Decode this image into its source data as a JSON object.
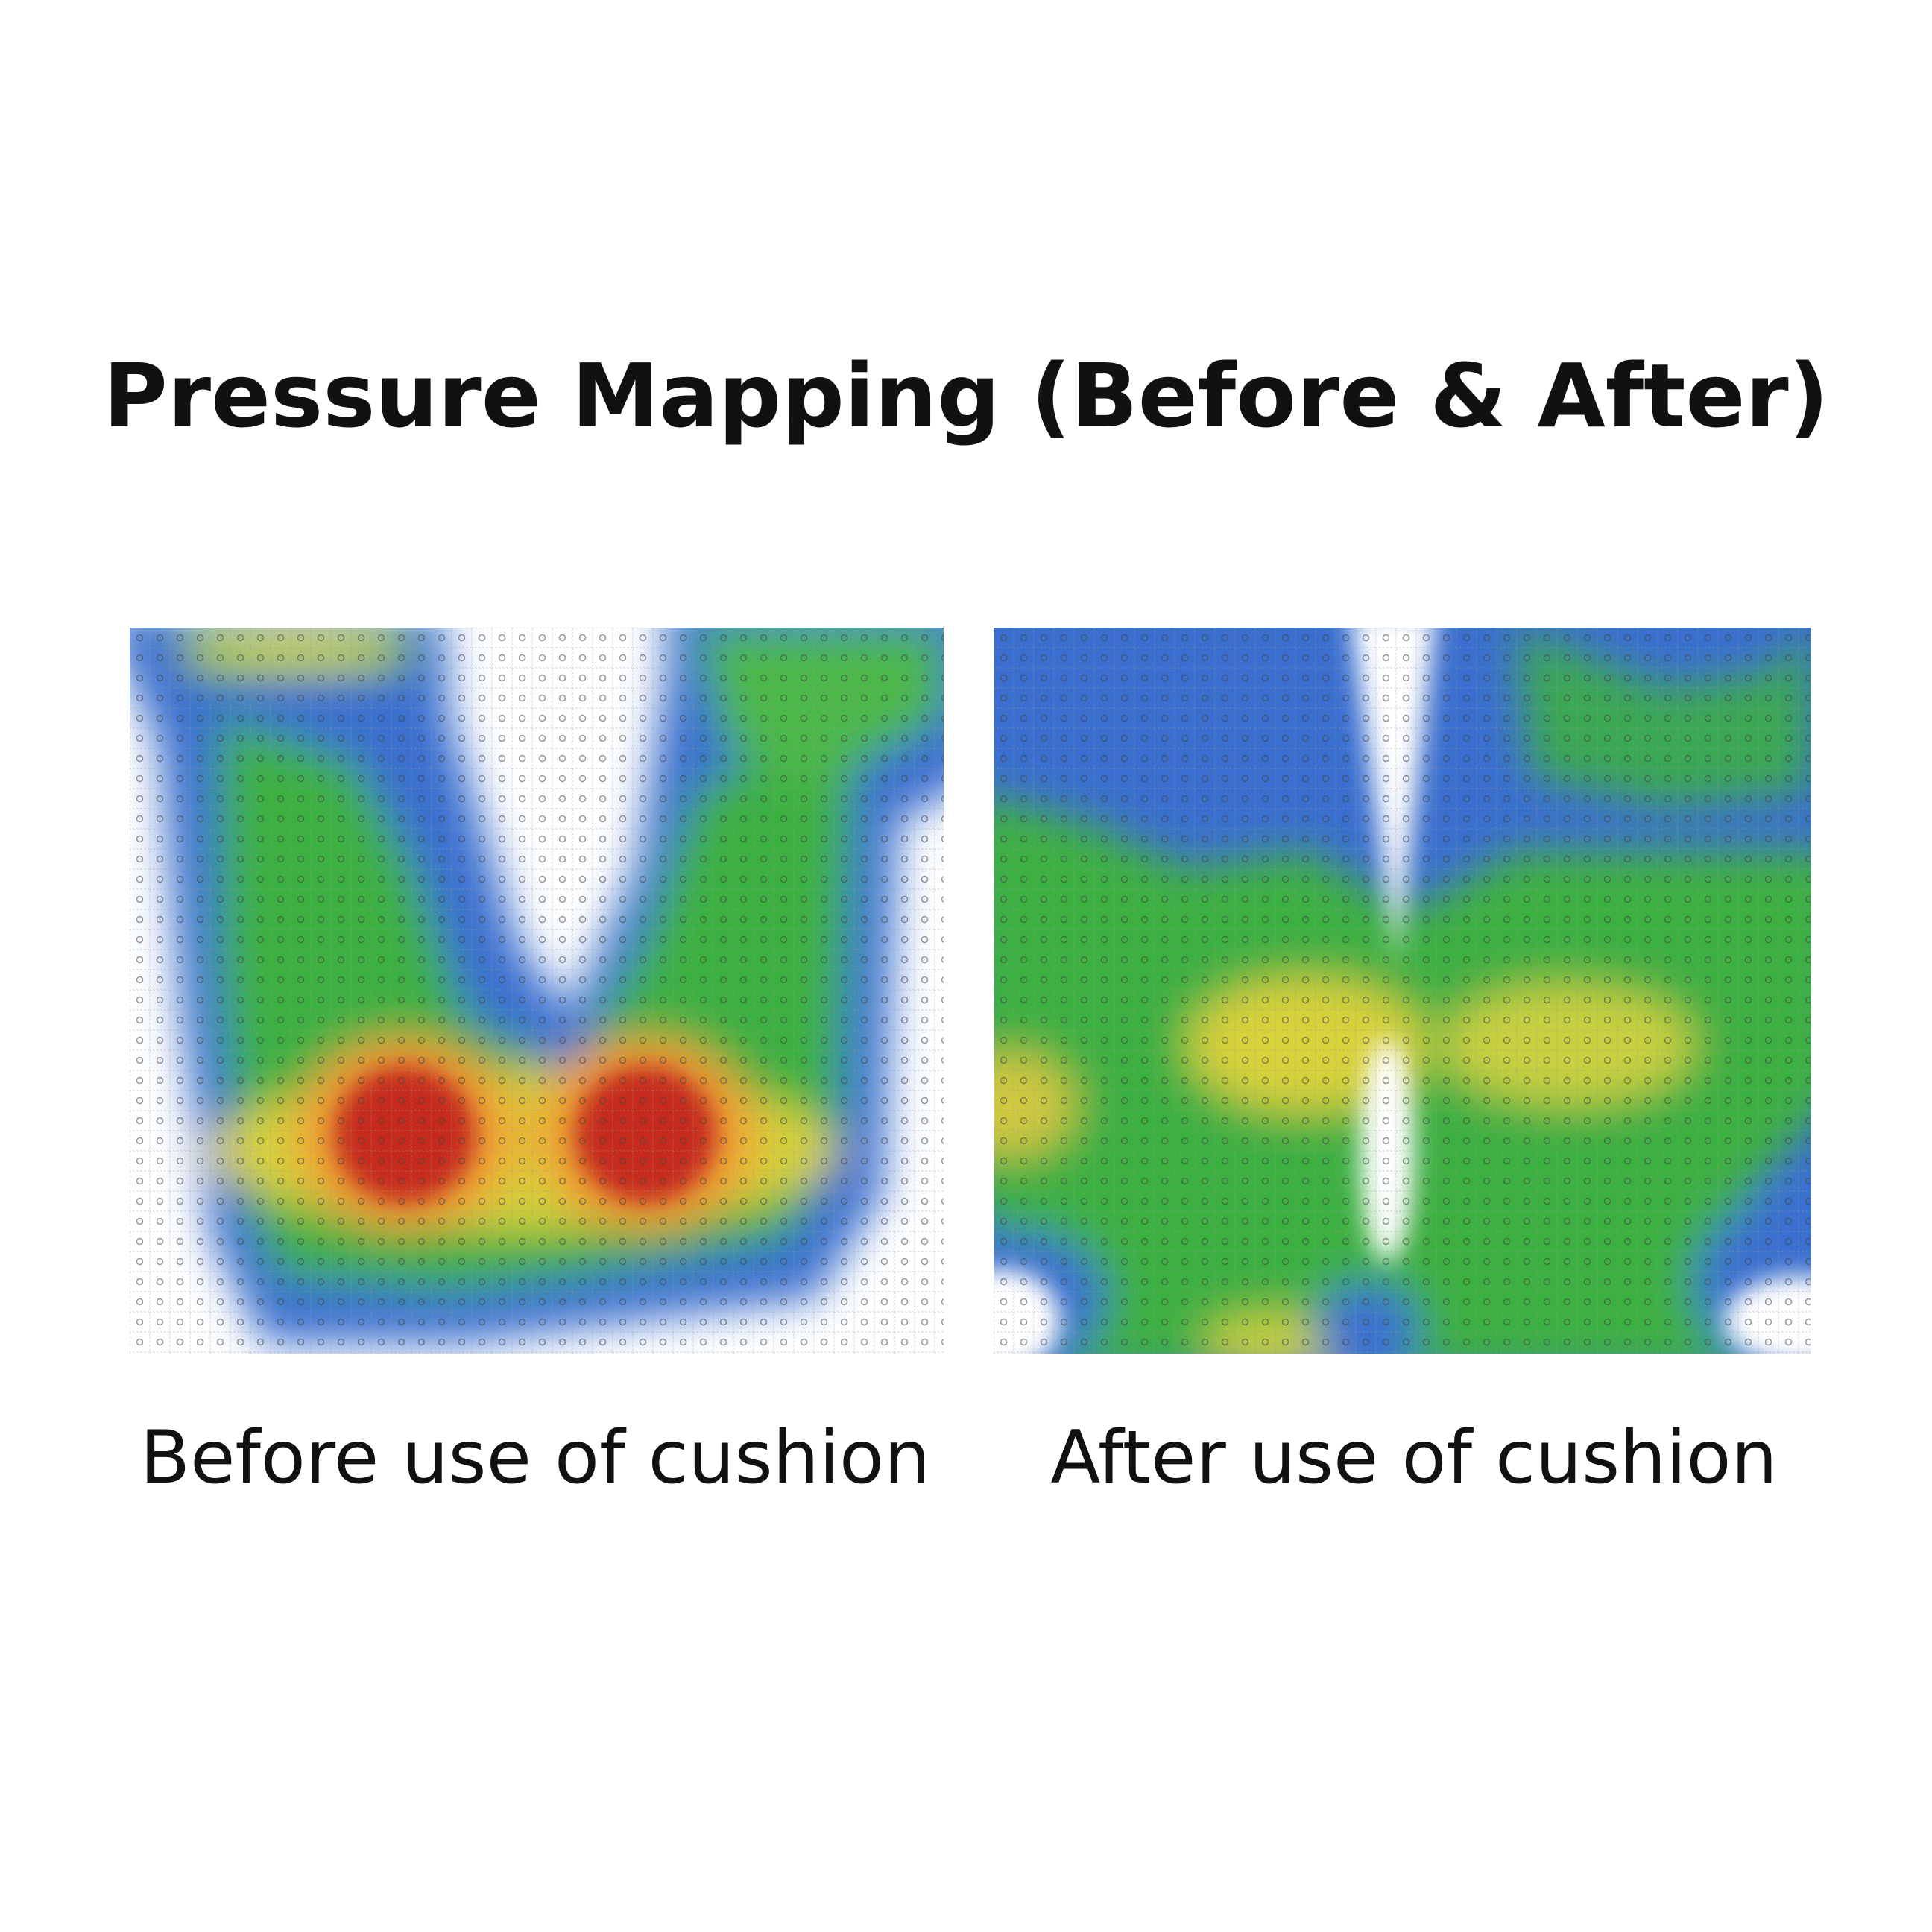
{
  "header": {
    "title": "Pressure Mapping (Before & After)"
  },
  "panels": [
    {
      "caption": "Before use of cushion"
    },
    {
      "caption": "After use of cushion"
    }
  ]
}
